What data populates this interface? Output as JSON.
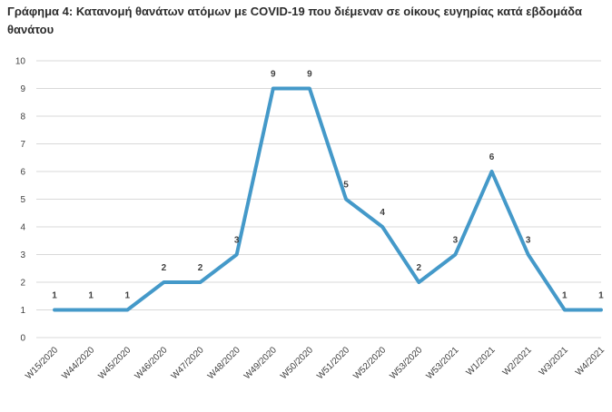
{
  "chart_data": {
    "type": "line",
    "title": "Γράφημα 4: Κατανομή θανάτων ατόμων με COVID-19 που διέμεναν σε οίκους ευγηρίας κατά εβδομάδα θανάτου",
    "xlabel": "",
    "ylabel": "",
    "categories": [
      "W15/2020",
      "W44/2020",
      "W45/2020",
      "W46/2020",
      "W47/2020",
      "W48/2020",
      "W49/2020",
      "W50/2020",
      "W51/2020",
      "W52/2020",
      "W53/2020",
      "W53/2021",
      "W1/2021",
      "W2/2021",
      "W3/2021",
      "W4/2021"
    ],
    "series": [
      {
        "values": [
          1,
          1,
          1,
          2,
          2,
          3,
          9,
          9,
          5,
          4,
          2,
          3,
          6,
          3,
          1,
          1
        ],
        "color": "#4499c9"
      }
    ],
    "ylim": [
      0,
      10
    ],
    "yticks": [
      0,
      1,
      2,
      3,
      4,
      5,
      6,
      7,
      8,
      9,
      10
    ],
    "grid": true,
    "legend": "none",
    "data_labels": true,
    "gridline_color": "#d9d9d9"
  }
}
